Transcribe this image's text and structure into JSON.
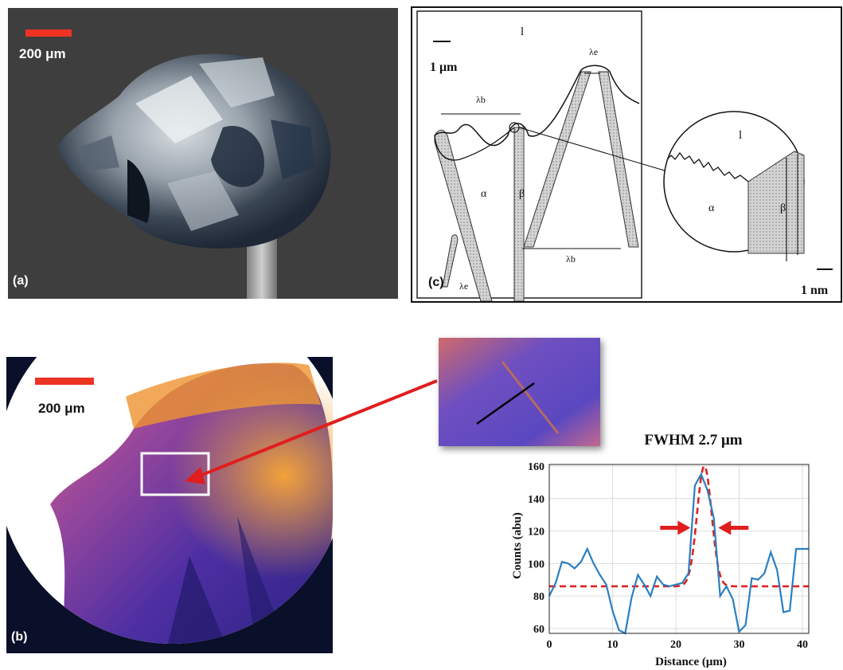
{
  "panel_a": {
    "label": "(a)",
    "scale_label": "200 μm",
    "scale_color": "#ee3322"
  },
  "panel_b": {
    "label": "(b)",
    "scale_label": "200 μm",
    "scale_color": "#ee3322"
  },
  "panel_c": {
    "label": "(c)",
    "scale_left": "1 μm",
    "scale_right": "1 nm",
    "liquid_left": "l",
    "liquid_right": "l",
    "alpha_left": "α",
    "beta_left": "β",
    "alpha_right": "α",
    "beta_right": "β",
    "lambda_b_top": "λb",
    "lambda_e_top": "λe",
    "lambda_b_bottom": "λb",
    "lambda_e_bottom": "λe"
  },
  "arrow_color": "#e01e1e",
  "chart_data": {
    "type": "line",
    "title": "FWHM 2.7 μm",
    "xlabel": "Distance (μm)",
    "ylabel": "Counts (abu)",
    "xlim": [
      0,
      41
    ],
    "ylim": [
      57,
      161
    ],
    "xticks": [
      0,
      10,
      20,
      30,
      40
    ],
    "yticks": [
      60,
      80,
      100,
      120,
      140,
      160
    ],
    "grid": true,
    "series": [
      {
        "kind": "measured",
        "color": "#2a7fc0",
        "x": [
          0,
          1,
          2,
          3,
          4,
          5,
          6,
          7,
          8,
          9,
          10,
          11,
          12,
          13,
          14,
          15,
          16,
          17,
          18,
          19,
          20,
          21,
          22,
          23,
          24,
          25,
          26,
          27,
          28,
          29,
          30,
          31,
          32,
          33,
          34,
          35,
          36,
          37,
          38,
          39,
          40,
          41
        ],
        "y": [
          80,
          88,
          101,
          100,
          97,
          101,
          109,
          100,
          93,
          87,
          71,
          59,
          57,
          79,
          93,
          87,
          80,
          92,
          87,
          86,
          87,
          88,
          94,
          148,
          155,
          145,
          128,
          80,
          86,
          78,
          58,
          62,
          91,
          90,
          94,
          107,
          96,
          70,
          71,
          109,
          109,
          109
        ]
      },
      {
        "kind": "gaussian-fit",
        "color": "#dd2222",
        "baseline": 86,
        "peak": 160,
        "center": 24.5,
        "fwhm": 2.7
      }
    ],
    "annotations": [
      {
        "type": "arrow",
        "direction": "right",
        "at_x": 22.3,
        "at_y": 122
      },
      {
        "type": "arrow",
        "direction": "left",
        "at_x": 26.7,
        "at_y": 122
      }
    ]
  }
}
